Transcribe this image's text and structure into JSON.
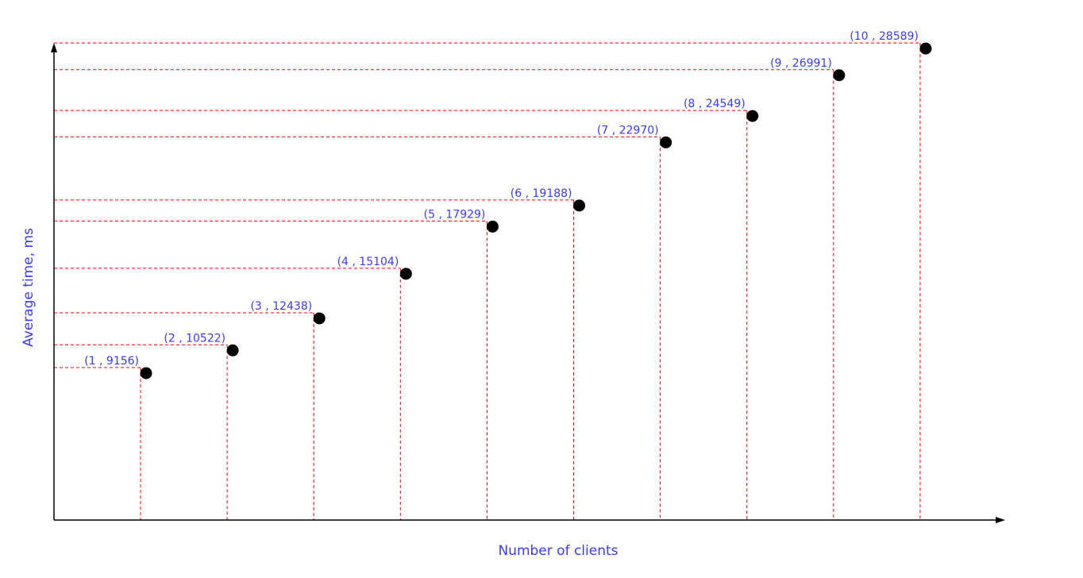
{
  "chart_data": {
    "type": "scatter",
    "title": "",
    "xlabel": "Number of clients",
    "ylabel": "Average time, ms",
    "grid": false,
    "legend": "none",
    "x": [
      1,
      2,
      3,
      4,
      5,
      6,
      7,
      8,
      9,
      10
    ],
    "y": [
      9156,
      10522,
      12438,
      15104,
      17929,
      19188,
      22970,
      24549,
      26991,
      28589
    ],
    "point_labels": [
      "(1 , 9156)",
      "(2 , 10522)",
      "(3 , 12438)",
      "(4 , 15104)",
      "(5 , 17929)",
      "(6 , 19188)",
      "(7 , 22970)",
      "(8 , 24549)",
      "(9 , 26991)",
      "(10 , 28589)"
    ],
    "guide_lines": "dashed, to both axes",
    "colors": {
      "points": "#000000",
      "guides": "#ff0000",
      "labels": "#3a3aff",
      "axes": "#000000"
    }
  }
}
